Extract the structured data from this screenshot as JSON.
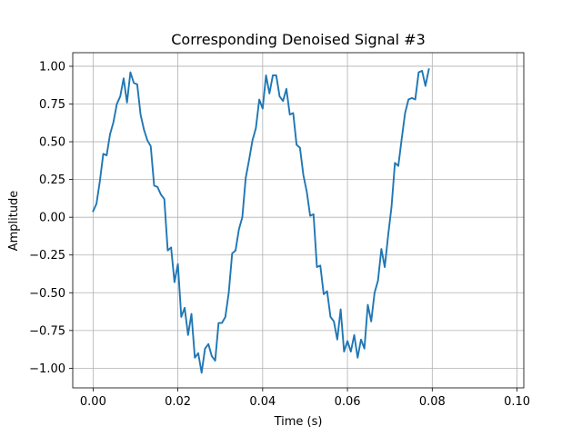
{
  "chart_data": {
    "type": "line",
    "title": "Corresponding Denoised Signal #3",
    "xlabel": "Time (s)",
    "ylabel": "Amplitude",
    "xlim": [
      -0.0048,
      0.1016
    ],
    "ylim": [
      -1.13,
      1.09
    ],
    "grid": true,
    "x_ticks": [
      0.0,
      0.02,
      0.04,
      0.06,
      0.08,
      0.1
    ],
    "x_tick_labels": [
      "0.00",
      "0.02",
      "0.04",
      "0.06",
      "0.08",
      "0.10"
    ],
    "y_ticks": [
      -1.0,
      -0.75,
      -0.5,
      -0.25,
      0.0,
      0.25,
      0.5,
      0.75,
      1.0
    ],
    "y_tick_labels": [
      "−1.00",
      "−0.75",
      "−0.50",
      "−0.25",
      "0.00",
      "0.25",
      "0.50",
      "0.75",
      "1.00"
    ],
    "series": [
      {
        "color": "#1f77b4",
        "x_start": 0.0,
        "x_step": 0.0008,
        "values": [
          0.04,
          0.09,
          0.24,
          0.42,
          0.41,
          0.55,
          0.63,
          0.75,
          0.8,
          0.92,
          0.76,
          0.96,
          0.89,
          0.88,
          0.68,
          0.58,
          0.51,
          0.47,
          0.21,
          0.2,
          0.15,
          0.12,
          -0.22,
          -0.2,
          -0.43,
          -0.31,
          -0.66,
          -0.6,
          -0.78,
          -0.64,
          -0.93,
          -0.9,
          -1.03,
          -0.87,
          -0.84,
          -0.92,
          -0.95,
          -0.7,
          -0.7,
          -0.66,
          -0.5,
          -0.24,
          -0.22,
          -0.08,
          0.0,
          0.26,
          0.38,
          0.51,
          0.59,
          0.78,
          0.72,
          0.94,
          0.82,
          0.94,
          0.94,
          0.8,
          0.77,
          0.85,
          0.68,
          0.69,
          0.48,
          0.46,
          0.28,
          0.17,
          0.01,
          0.02,
          -0.33,
          -0.32,
          -0.51,
          -0.49,
          -0.66,
          -0.69,
          -0.81,
          -0.61,
          -0.89,
          -0.82,
          -0.89,
          -0.78,
          -0.93,
          -0.81,
          -0.87,
          -0.58,
          -0.69,
          -0.5,
          -0.42,
          -0.21,
          -0.33,
          -0.12,
          0.07,
          0.36,
          0.34,
          0.52,
          0.69,
          0.78,
          0.79,
          0.78,
          0.96,
          0.97,
          0.87,
          0.98
        ]
      }
    ]
  }
}
